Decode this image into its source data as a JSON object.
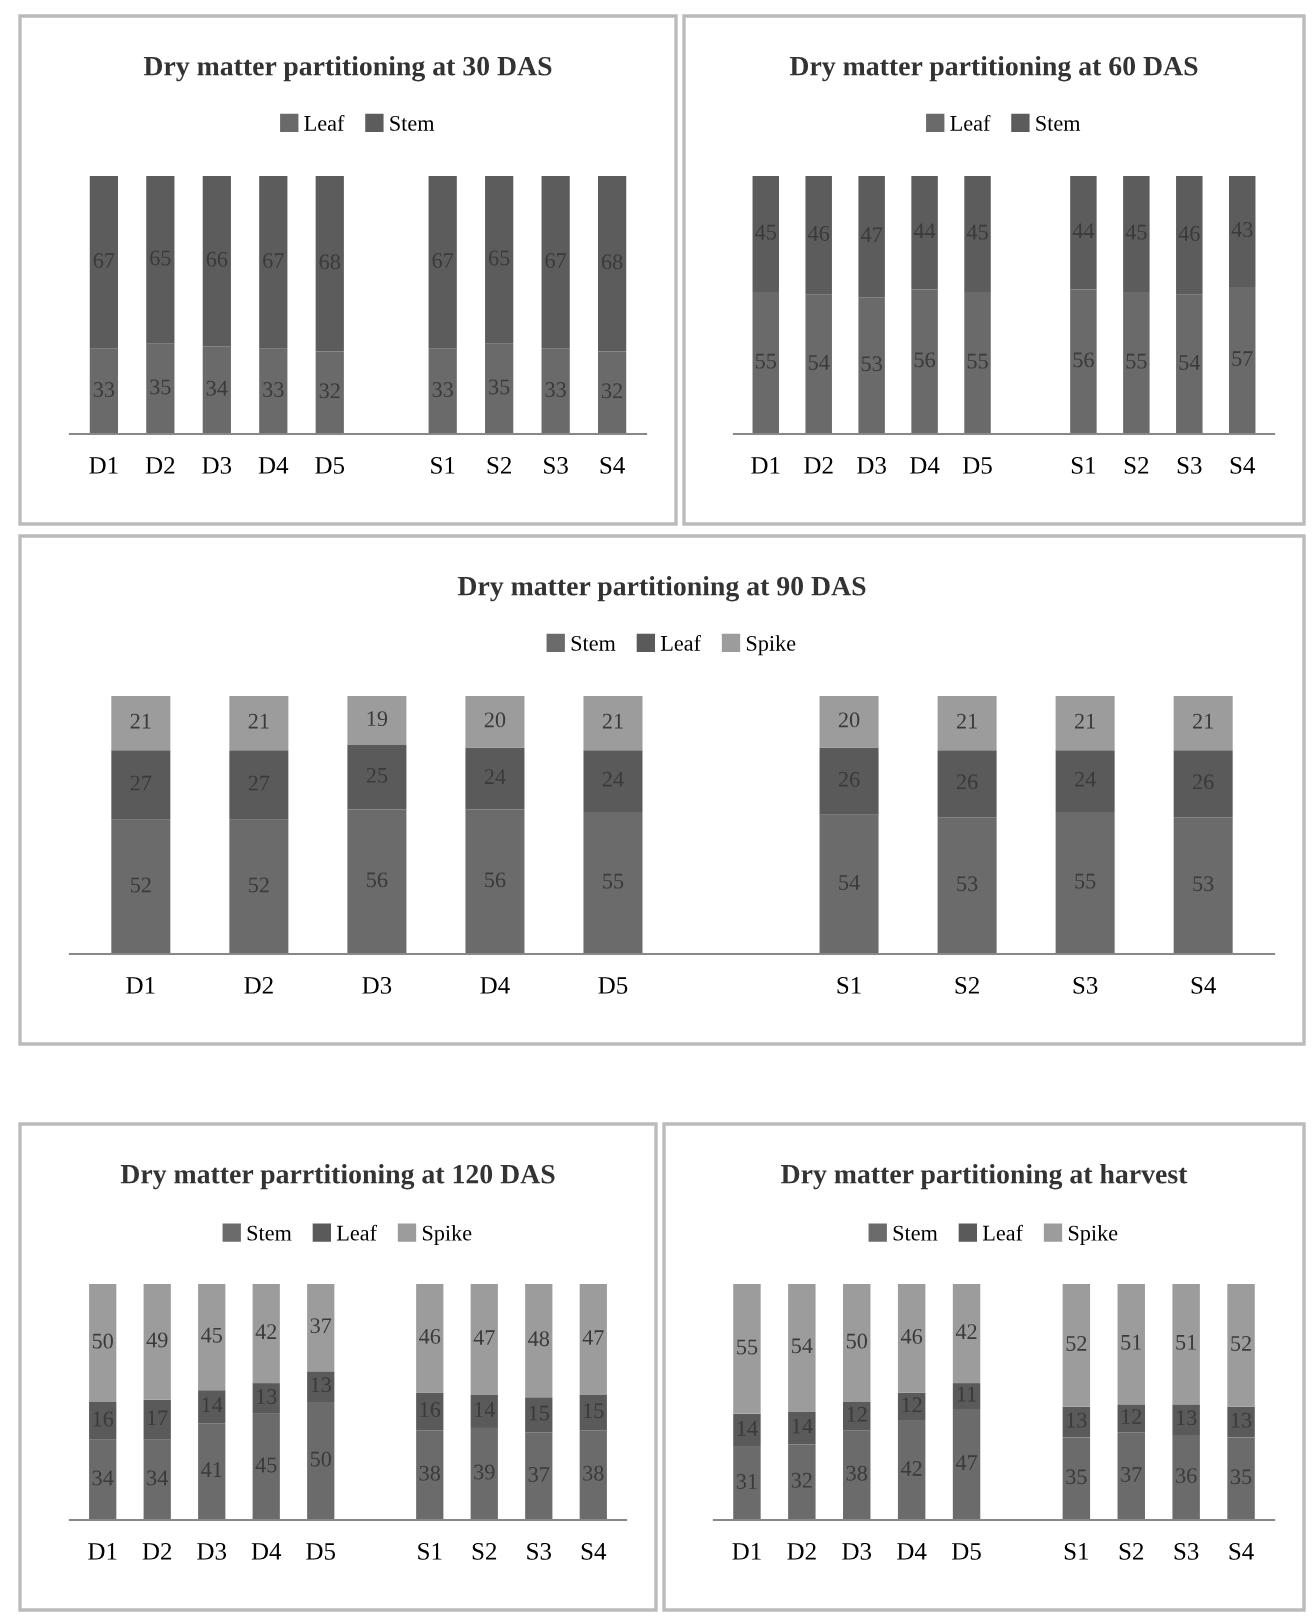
{
  "chart_data": [
    {
      "type": "bar",
      "stacked": true,
      "title": "Dry matter partitioning at 30 DAS",
      "legend": "top",
      "data_labels": true,
      "tick_labels": "x",
      "categories": [
        "D1",
        "D2",
        "D3",
        "D4",
        "D5",
        null,
        "S1",
        "S2",
        "S3",
        "S4"
      ],
      "series": [
        {
          "name": "Leaf",
          "color": "#6a6a6a",
          "values": [
            33,
            35,
            34,
            33,
            32,
            null,
            33,
            35,
            33,
            32
          ]
        },
        {
          "name": "Stem",
          "color": "#5c5c5c",
          "values": [
            67,
            65,
            66,
            67,
            68,
            null,
            67,
            65,
            67,
            68
          ]
        }
      ]
    },
    {
      "type": "bar",
      "stacked": true,
      "title": "Dry matter partitioning at 60 DAS",
      "legend": "top",
      "data_labels": true,
      "tick_labels": "x",
      "categories": [
        "D1",
        "D2",
        "D3",
        "D4",
        "D5",
        null,
        "S1",
        "S2",
        "S3",
        "S4"
      ],
      "series": [
        {
          "name": "Leaf",
          "color": "#6a6a6a",
          "values": [
            55,
            54,
            53,
            56,
            55,
            null,
            56,
            55,
            54,
            57
          ]
        },
        {
          "name": "Stem",
          "color": "#5c5c5c",
          "values": [
            45,
            46,
            47,
            44,
            45,
            null,
            44,
            45,
            46,
            43
          ]
        }
      ]
    },
    {
      "type": "bar",
      "stacked": true,
      "title": "Dry matter partitioning at 90 DAS",
      "legend": "top",
      "data_labels": true,
      "tick_labels": "x",
      "categories": [
        "D1",
        "D2",
        "D3",
        "D4",
        "D5",
        null,
        "S1",
        "S2",
        "S3",
        "S4"
      ],
      "series": [
        {
          "name": "Stem",
          "color": "#6b6b6b",
          "values": [
            52,
            52,
            56,
            56,
            55,
            null,
            54,
            53,
            55,
            53
          ]
        },
        {
          "name": "Leaf",
          "color": "#5a5a5a",
          "values": [
            27,
            27,
            25,
            24,
            24,
            null,
            26,
            26,
            24,
            26
          ]
        },
        {
          "name": "Spike",
          "color": "#9c9c9c",
          "values": [
            21,
            21,
            19,
            20,
            21,
            null,
            20,
            21,
            21,
            21
          ]
        }
      ]
    },
    {
      "type": "bar",
      "stacked": true,
      "title": "Dry matter parrtitioning at 120 DAS",
      "legend": "top",
      "data_labels": true,
      "tick_labels": "x",
      "categories": [
        "D1",
        "D2",
        "D3",
        "D4",
        "D5",
        null,
        "S1",
        "S2",
        "S3",
        "S4"
      ],
      "series": [
        {
          "name": "Stem",
          "color": "#6b6b6b",
          "values": [
            34,
            34,
            41,
            45,
            50,
            null,
            38,
            39,
            37,
            38
          ]
        },
        {
          "name": "Leaf",
          "color": "#5a5a5a",
          "values": [
            16,
            17,
            14,
            13,
            13,
            null,
            16,
            14,
            15,
            15
          ]
        },
        {
          "name": "Spike",
          "color": "#9c9c9c",
          "values": [
            50,
            49,
            45,
            42,
            37,
            null,
            46,
            47,
            48,
            47
          ]
        }
      ]
    },
    {
      "type": "bar",
      "stacked": true,
      "title": "Dry matter partitioning at harvest",
      "legend": "top",
      "data_labels": true,
      "tick_labels": "x",
      "categories": [
        "D1",
        "D2",
        "D3",
        "D4",
        "D5",
        null,
        "S1",
        "S2",
        "S3",
        "S4"
      ],
      "series": [
        {
          "name": "Stem",
          "color": "#6b6b6b",
          "values": [
            31,
            32,
            38,
            42,
            47,
            null,
            35,
            37,
            36,
            35
          ]
        },
        {
          "name": "Leaf",
          "color": "#5a5a5a",
          "values": [
            14,
            14,
            12,
            12,
            11,
            null,
            13,
            12,
            13,
            13
          ]
        },
        {
          "name": "Spike",
          "color": "#9c9c9c",
          "values": [
            55,
            54,
            50,
            46,
            42,
            null,
            52,
            51,
            51,
            52
          ]
        }
      ]
    }
  ]
}
